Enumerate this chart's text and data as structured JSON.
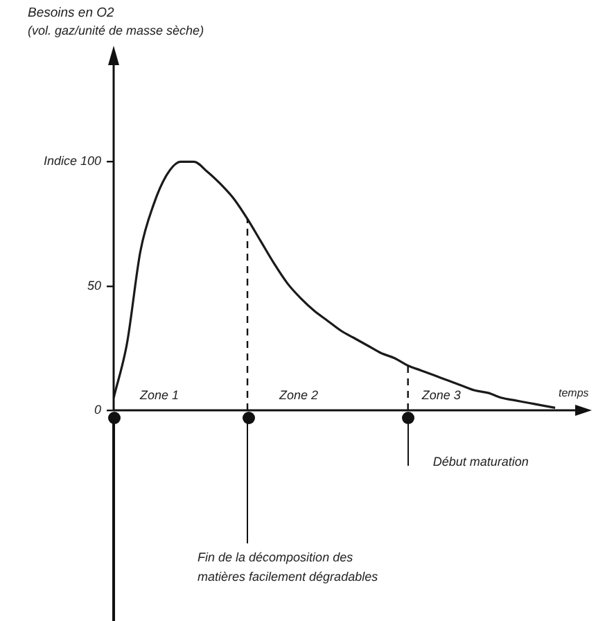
{
  "chart_data": {
    "type": "line",
    "title": "Besoins en O2",
    "subtitle": "(vol. gaz/unité de masse sèche)",
    "xlabel": "temps",
    "categories": [
      null,
      null,
      null,
      null,
      null,
      null,
      null,
      null,
      null,
      null,
      null,
      null,
      null,
      null,
      null,
      null,
      null,
      null,
      null,
      null,
      null,
      null,
      null,
      null,
      null,
      null,
      null,
      null,
      null,
      null,
      null,
      null,
      null,
      null
    ],
    "series": [
      {
        "color": "#1a1a1a",
        "values": [
          5,
          27,
          64,
          83,
          95,
          100,
          100,
          96,
          91,
          85,
          77,
          68,
          59,
          51,
          45,
          40,
          36,
          32,
          29,
          26,
          23,
          21,
          18,
          16,
          14,
          12,
          10,
          8,
          7,
          5,
          4,
          3,
          2,
          1
        ]
      }
    ],
    "ylim": [
      0,
      140
    ],
    "yticks": [
      0,
      50,
      {
        "value": 100,
        "label": "Indice 100"
      }
    ],
    "annotations": [
      "Zone 1",
      "Zone 2",
      "Zone 3",
      "Début maturation",
      "Fin de la décomposition des matières facilement dégradables"
    ],
    "grid": false,
    "legend": false,
    "marker": "none",
    "line_style": "solid"
  }
}
